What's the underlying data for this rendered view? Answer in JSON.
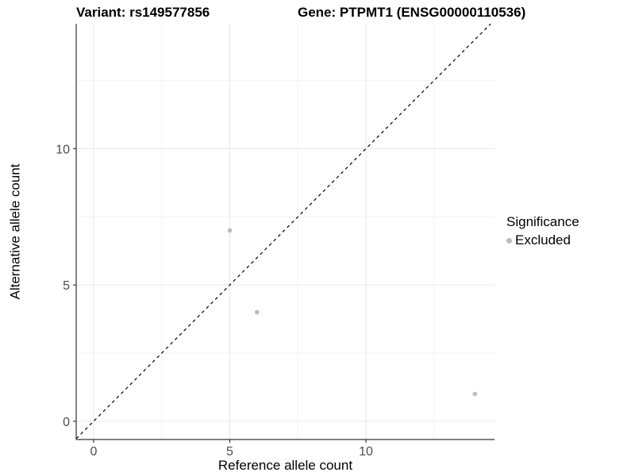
{
  "titles": {
    "variant": "Variant: rs149577856",
    "gene": "Gene: PTPMT1 (ENSG00000110536)"
  },
  "legend": {
    "title": "Significance",
    "items": [
      {
        "label": "Excluded",
        "color": "#bebebe"
      }
    ]
  },
  "chart_data": {
    "type": "scatter",
    "title": "Variant: rs149577856 | Gene: PTPMT1 (ENSG00000110536)",
    "xlabel": "Reference allele count",
    "ylabel": "Alternative allele count",
    "xlim": [
      -0.64,
      14.72
    ],
    "ylim": [
      -0.67,
      14.58
    ],
    "x_ticks": {
      "values": [
        0,
        5,
        10
      ],
      "labels": [
        "0",
        "5",
        "10"
      ]
    },
    "y_ticks": {
      "values": [
        0,
        5,
        10
      ],
      "labels": [
        "0",
        "5",
        "10"
      ]
    },
    "x_minor_gridlines": [
      2.5,
      7.5,
      12.5
    ],
    "y_minor_gridlines": [
      2.5,
      7.5,
      12.5
    ],
    "grid": true,
    "legend_position": "right",
    "series": [
      {
        "name": "Excluded",
        "color": "#bebebe",
        "points": [
          [
            5,
            7
          ],
          [
            6,
            4
          ],
          [
            14,
            1
          ]
        ]
      }
    ],
    "reference_line": {
      "slope": 1,
      "intercept": 0,
      "style": "dashed",
      "color": "#000000"
    }
  },
  "colors": {
    "major_gridline": "#e8e8e8",
    "minor_gridline": "#f3f3f3",
    "axis_line": "#333333",
    "tick_mark": "#333333",
    "tick_label": "#4d4d4d",
    "point": "#bebebe"
  }
}
